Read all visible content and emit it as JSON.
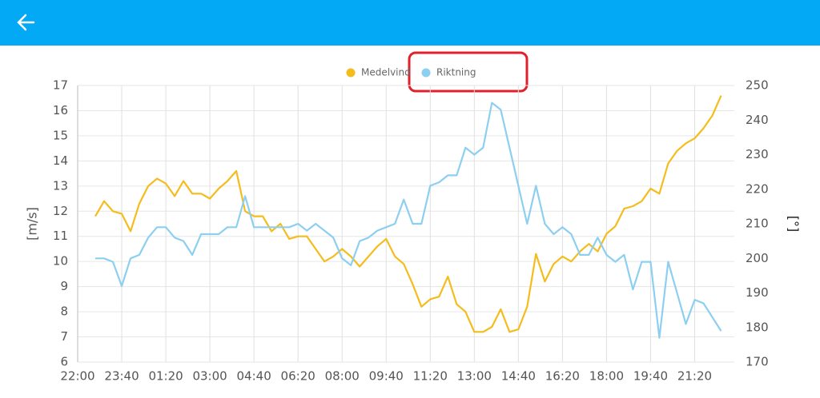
{
  "chart_data": {
    "type": "line",
    "y_label": "[m/s]",
    "y2_label": "[°]",
    "x": [
      40,
      60,
      80,
      100,
      120,
      140,
      160,
      180,
      200,
      220,
      240,
      260,
      280,
      300,
      320,
      340,
      360,
      380,
      400,
      420,
      440,
      460,
      480,
      500,
      520,
      540,
      560,
      580,
      600,
      620,
      640,
      660,
      680,
      700,
      720,
      740,
      760,
      780,
      800,
      820,
      840,
      860,
      880,
      900,
      920,
      940,
      960,
      980,
      1000,
      1020,
      1040,
      1060,
      1080,
      1100,
      1120,
      1140,
      1160,
      1180,
      1200,
      1220,
      1240,
      1260,
      1280,
      1300,
      1320,
      1340,
      1360,
      1380,
      1400,
      1420,
      1440,
      1460
    ],
    "xlim": [
      0,
      1490
    ],
    "xticks": [
      {
        "value": 0,
        "label": "22:00"
      },
      {
        "value": 100,
        "label": "23:40"
      },
      {
        "value": 200,
        "label": "01:20"
      },
      {
        "value": 300,
        "label": "03:00"
      },
      {
        "value": 400,
        "label": "04:40"
      },
      {
        "value": 500,
        "label": "06:20"
      },
      {
        "value": 600,
        "label": "08:00"
      },
      {
        "value": 700,
        "label": "09:40"
      },
      {
        "value": 800,
        "label": "11:20"
      },
      {
        "value": 900,
        "label": "13:00"
      },
      {
        "value": 1000,
        "label": "14:40"
      },
      {
        "value": 1100,
        "label": "16:20"
      },
      {
        "value": 1200,
        "label": "18:00"
      },
      {
        "value": 1300,
        "label": "19:40"
      },
      {
        "value": 1400,
        "label": "21:20"
      }
    ],
    "ylim": [
      6,
      17
    ],
    "yticks": [
      6,
      7,
      8,
      9,
      10,
      11,
      12,
      13,
      14,
      15,
      16,
      17
    ],
    "y2lim": [
      170,
      250
    ],
    "y2ticks": [
      170,
      180,
      190,
      200,
      210,
      220,
      230,
      240,
      250
    ],
    "grid": true,
    "series": [
      {
        "name": "Medelvind",
        "color": "#f4bc1c",
        "values": [
          11.8,
          12.4,
          12.0,
          11.9,
          11.2,
          12.3,
          13.0,
          13.3,
          13.1,
          12.6,
          13.2,
          12.7,
          12.7,
          12.5,
          12.9,
          13.2,
          13.6,
          12.0,
          11.8,
          11.8,
          11.2,
          11.5,
          10.9,
          11.0,
          11.0,
          10.5,
          10.0,
          10.2,
          10.5,
          10.2,
          9.8,
          10.2,
          10.6,
          10.9,
          10.2,
          9.9,
          9.1,
          8.2,
          8.5,
          8.6,
          9.4,
          8.3,
          8.0,
          7.2,
          7.2,
          7.4,
          8.1,
          7.2,
          7.3,
          8.2,
          10.3,
          9.2,
          9.9,
          10.2,
          10.0,
          10.4,
          10.7,
          10.4,
          11.1,
          11.4,
          12.1,
          12.2,
          12.4,
          12.9,
          12.7,
          13.9,
          14.4,
          14.7,
          14.9,
          15.3,
          15.8,
          16.6
        ]
      },
      {
        "name": "Riktning",
        "color": "#8dcff0",
        "axis": "y2",
        "values": [
          200,
          200,
          199,
          192,
          200,
          201,
          206,
          209,
          209,
          206,
          205,
          201,
          207,
          207,
          207,
          209,
          209,
          218,
          209,
          209,
          209,
          209,
          209,
          210,
          208,
          210,
          208,
          206,
          200,
          198,
          205,
          206,
          208,
          209,
          210,
          217,
          210,
          210,
          221,
          222,
          224,
          224,
          232,
          230,
          232,
          245,
          243,
          232,
          221,
          210,
          221,
          210,
          207,
          209,
          207,
          201,
          201,
          206,
          201,
          199,
          201,
          191,
          199,
          199,
          177,
          199,
          190,
          181,
          188,
          187,
          183,
          179
        ]
      }
    ]
  }
}
